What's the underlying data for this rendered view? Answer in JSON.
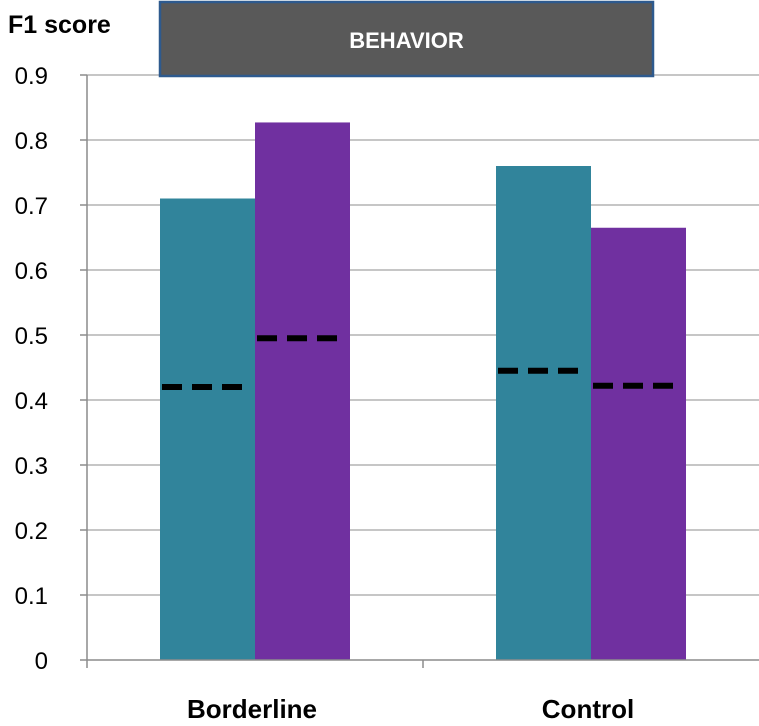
{
  "chart_data": {
    "type": "bar",
    "title": "BEHAVIOR",
    "ylabel": "F1 score",
    "xlabel": "",
    "categories": [
      "Borderline",
      "Control"
    ],
    "ylim": [
      0,
      0.9
    ],
    "yticks": [
      "0",
      "0.1",
      "0.2",
      "0.3",
      "0.4",
      "0.5",
      "0.6",
      "0.7",
      "0.8",
      "0.9"
    ],
    "grid": true,
    "legend": "none",
    "series": [
      {
        "values": [
          0.71,
          0.76
        ],
        "color": "#31849b"
      },
      {
        "values": [
          0.827,
          0.665
        ],
        "color": "#7030a0"
      }
    ],
    "baselines": [
      [
        0.42,
        0.495
      ],
      [
        0.445,
        0.422
      ]
    ],
    "title_box_color": "#595959",
    "title_border_color": "#2e5a8e"
  }
}
